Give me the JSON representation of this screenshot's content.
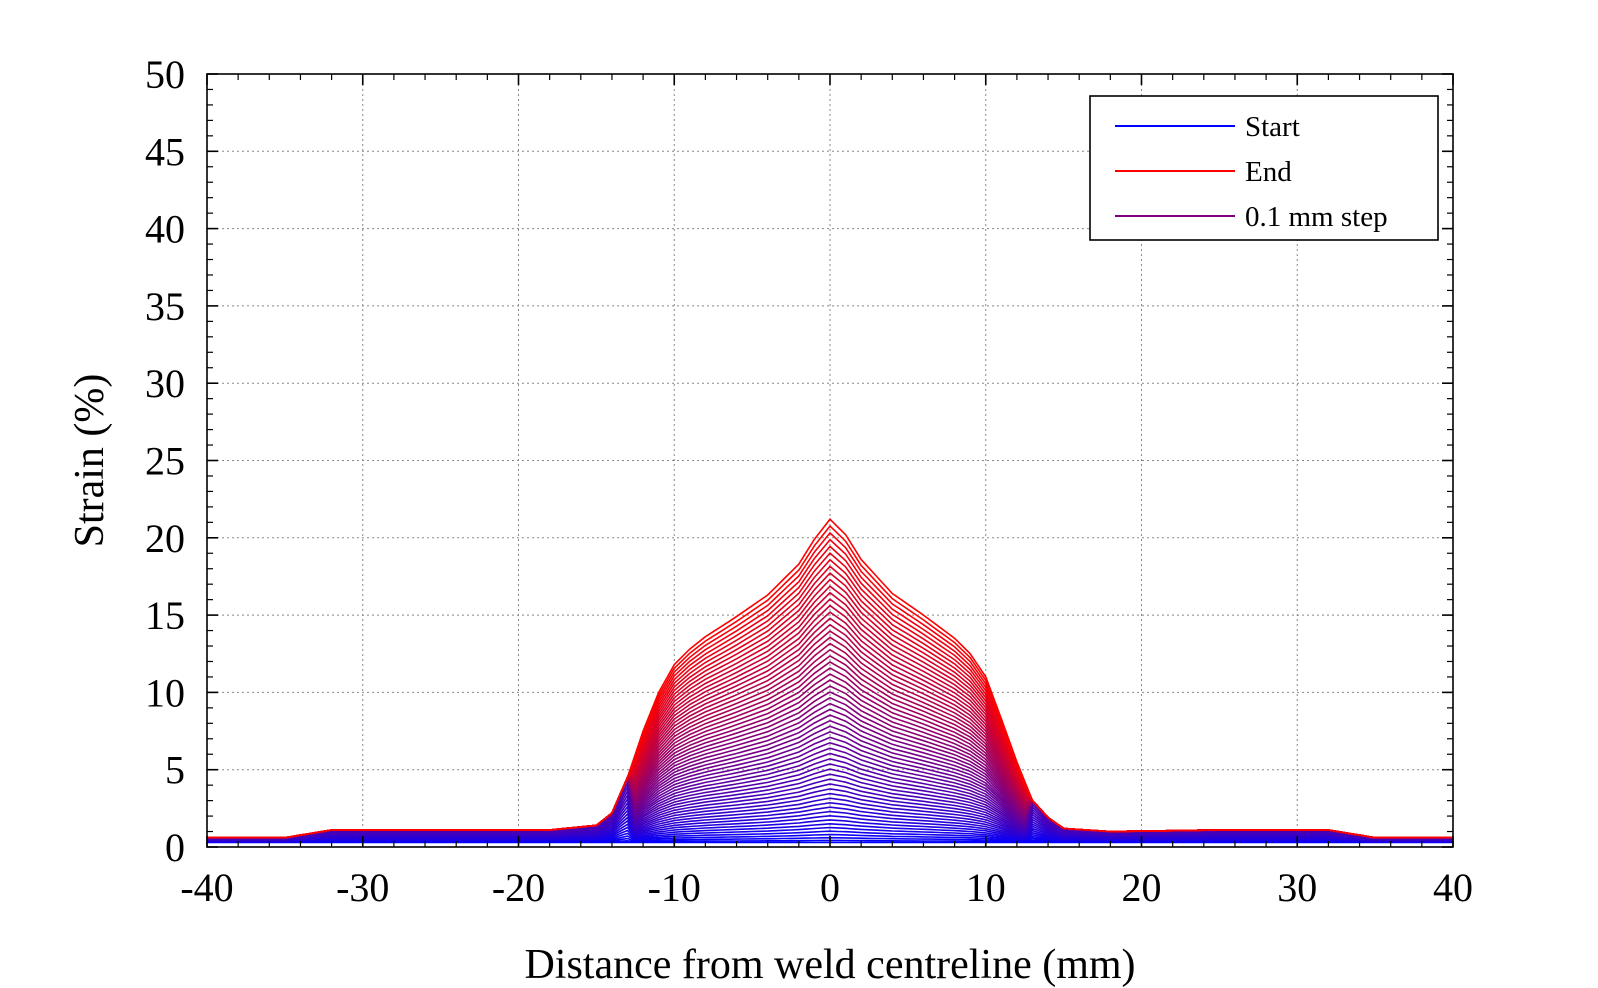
{
  "chart_data": {
    "type": "line",
    "title": "",
    "xlabel": "Distance from weld centreline (mm)",
    "ylabel": "Strain (%)",
    "xlim": [
      -40,
      40
    ],
    "ylim": [
      0,
      50
    ],
    "x_ticks": [
      "-40",
      "-30",
      "-20",
      "-10",
      "0",
      "10",
      "20",
      "30",
      "40"
    ],
    "y_ticks": [
      "0",
      "5",
      "10",
      "15",
      "20",
      "25",
      "30",
      "35",
      "40",
      "45",
      "50"
    ],
    "grid": true,
    "legend": {
      "placement": "top-right",
      "entries": [
        {
          "label": "Start",
          "color": "#0000ff"
        },
        {
          "label": "End",
          "color": "#ff0000"
        },
        {
          "label": "0.1 mm step",
          "color": "#7f007f"
        }
      ]
    },
    "curve_count": 60,
    "start_color": "#0000ff",
    "end_color": "#ff0000",
    "end_curve": {
      "x": [
        -40,
        -35,
        -32,
        -25,
        -18,
        -15,
        -14,
        -13,
        -12,
        -11,
        -10,
        -9,
        -8,
        -6,
        -4,
        -2,
        -1,
        0,
        1,
        2,
        4,
        6,
        8,
        9,
        10,
        11,
        12,
        13,
        14,
        15,
        18,
        25,
        32,
        35,
        40
      ],
      "y": [
        0.6,
        0.6,
        1.1,
        1.1,
        1.1,
        1.4,
        2.2,
        4.5,
        7.5,
        10.0,
        11.8,
        12.8,
        13.6,
        14.9,
        16.3,
        18.3,
        19.9,
        21.2,
        20.2,
        18.6,
        16.4,
        15.0,
        13.5,
        12.5,
        11.0,
        8.3,
        5.5,
        3.0,
        1.9,
        1.2,
        1.0,
        1.1,
        1.1,
        0.6,
        0.6
      ]
    },
    "start_curve": {
      "x": [
        -40,
        40
      ],
      "y": [
        0.3,
        0.3
      ]
    }
  }
}
